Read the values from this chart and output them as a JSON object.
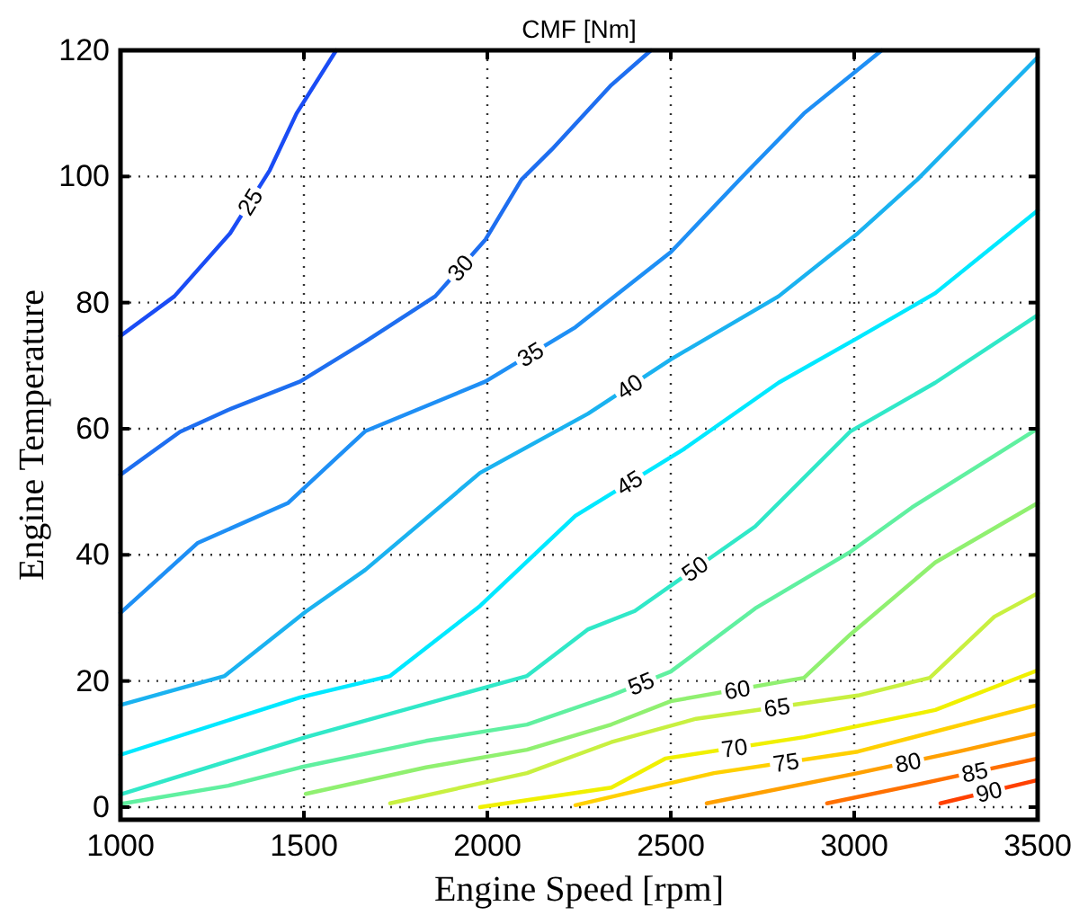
{
  "chart_data": {
    "type": "line",
    "title": "CMF [Nm]",
    "xlabel": "Engine Speed [rpm]",
    "ylabel": "Engine Temperature",
    "xlim": [
      1000,
      3500
    ],
    "ylim": [
      -2,
      120
    ],
    "xticks": [
      1000,
      1500,
      2000,
      2500,
      3000,
      3500
    ],
    "yticks": [
      0,
      20,
      40,
      60,
      80,
      100,
      120
    ],
    "grid": true,
    "marker": "none",
    "line_style": "solid",
    "series": [
      {
        "name": "25",
        "color": "#1a4cf5",
        "x": [
          1000,
          1147,
          1299,
          1407,
          1480,
          1588
        ],
        "values": [
          74.7,
          81,
          91,
          101,
          110,
          120
        ]
      },
      {
        "name": "30",
        "color": "#1e6ef0",
        "x": [
          1000,
          1162,
          1294,
          1490,
          1667,
          1858,
          1995,
          2093,
          2176,
          2338,
          2446
        ],
        "values": [
          52.7,
          59.5,
          63,
          67.5,
          73.8,
          81,
          90,
          99.5,
          104.3,
          114.5,
          120
        ]
      },
      {
        "name": "35",
        "color": "#1e8ff5",
        "x": [
          1000,
          1211,
          1456,
          1667,
          1995,
          2240,
          2500,
          2696,
          2863,
          3075
        ],
        "values": [
          30.8,
          41.9,
          48.2,
          59.6,
          67.5,
          76.1,
          88,
          100,
          110,
          120
        ]
      },
      {
        "name": "40",
        "color": "#1ab2f0",
        "x": [
          1000,
          1284,
          1505,
          1667,
          1980,
          2275,
          2500,
          2794,
          3010,
          3172,
          3500
        ],
        "values": [
          16.2,
          20.8,
          31,
          37.6,
          53,
          62.4,
          71,
          81,
          91,
          99.5,
          118.9
        ]
      },
      {
        "name": "45",
        "color": "#00e8ff",
        "x": [
          1000,
          1490,
          1735,
          1980,
          2240,
          2534,
          2794,
          3010,
          3221,
          3500
        ],
        "values": [
          8.3,
          17.4,
          20.8,
          31.9,
          46.2,
          56.7,
          67.3,
          74.4,
          81.5,
          94.6
        ]
      },
      {
        "name": "50",
        "color": "#30e8c8",
        "x": [
          1000,
          1505,
          2108,
          2275,
          2402,
          2730,
          2990,
          3221,
          3500
        ],
        "values": [
          2,
          11.1,
          20.8,
          28.2,
          31.1,
          44.5,
          59.6,
          67.3,
          78
        ]
      },
      {
        "name": "55",
        "color": "#60f0a0",
        "x": [
          1000,
          1294,
          1490,
          1833,
          2108,
          2338,
          2500,
          2730,
          2990,
          3157,
          3500
        ],
        "values": [
          0.5,
          3.4,
          6.3,
          10.5,
          13.1,
          17.7,
          21.5,
          31.5,
          40.5,
          47.5,
          60
        ]
      },
      {
        "name": "60",
        "color": "#90f070",
        "x": [
          1505,
          1833,
          2108,
          2338,
          2500,
          2863,
          2990,
          3221,
          3500
        ],
        "values": [
          2.1,
          6.3,
          9.1,
          13.1,
          16.8,
          20.5,
          27.4,
          38.8,
          48.2
        ]
      },
      {
        "name": "65",
        "color": "#c8f040",
        "x": [
          1735,
          2108,
          2338,
          2569,
          3010,
          3206,
          3382,
          3500
        ],
        "values": [
          0.6,
          5.4,
          10.3,
          14,
          17.7,
          20.5,
          30.2,
          33.9
        ]
      },
      {
        "name": "70",
        "color": "#f0f000",
        "x": [
          1980,
          2338,
          2485,
          2863,
          3221,
          3500
        ],
        "values": [
          0,
          3.1,
          7.7,
          11.1,
          15.4,
          21.7
        ]
      },
      {
        "name": "75",
        "color": "#ffd000",
        "x": [
          2240,
          2618,
          3010,
          3500
        ],
        "values": [
          0.3,
          5.4,
          8.8,
          16.2
        ]
      },
      {
        "name": "80",
        "color": "#ffa000",
        "x": [
          2598,
          3010,
          3284,
          3500
        ],
        "values": [
          0.6,
          5.4,
          8.8,
          11.7
        ]
      },
      {
        "name": "85",
        "color": "#ff7000",
        "x": [
          2926,
          3157,
          3500
        ],
        "values": [
          0.6,
          3.4,
          7.7
        ]
      },
      {
        "name": "90",
        "color": "#ff4000",
        "x": [
          3235,
          3500
        ],
        "values": [
          0.6,
          4.3
        ]
      }
    ]
  }
}
